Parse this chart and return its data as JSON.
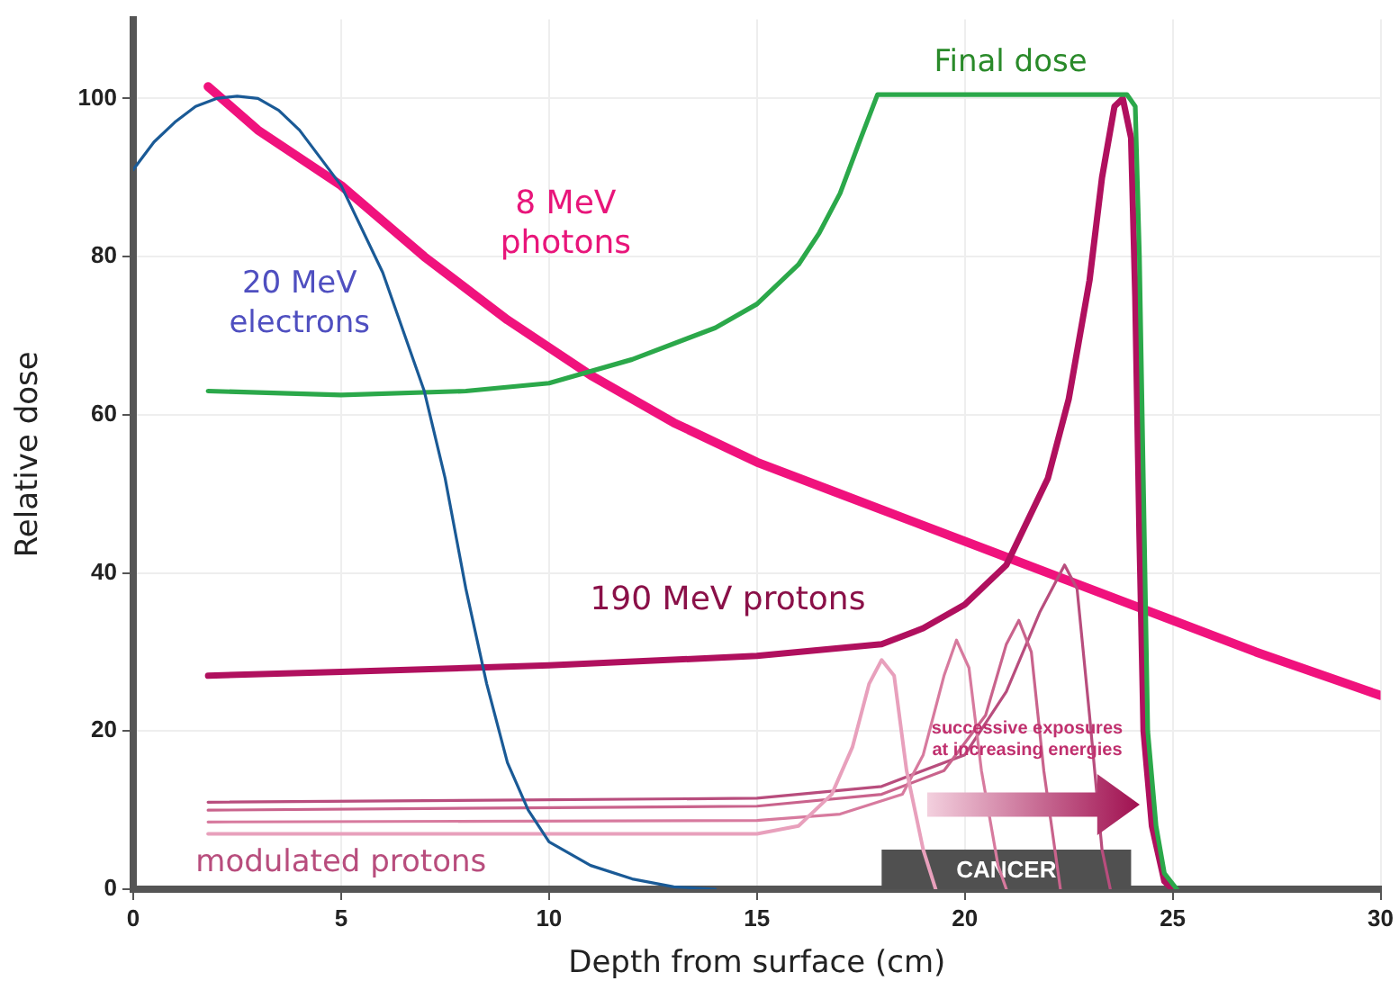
{
  "chart_data": {
    "type": "line",
    "xlabel": "Depth from surface (cm)",
    "ylabel": "Relative dose",
    "xlim": [
      0,
      30
    ],
    "xticks": [
      0,
      5,
      10,
      15,
      20,
      25,
      30
    ],
    "ylim": [
      0,
      110
    ],
    "yticks": [
      0,
      20,
      40,
      60,
      80,
      100
    ],
    "grid": true,
    "legend": false,
    "marker": "none",
    "series": [
      {
        "name": "20 MeV electrons",
        "color": "#1a5a96",
        "x": [
          0,
          0.5,
          1,
          1.5,
          2,
          2.5,
          3,
          3.5,
          4,
          5,
          6,
          7,
          7.5,
          8,
          8.5,
          9,
          9.5,
          10,
          11,
          12,
          13,
          14
        ],
        "values": [
          91,
          94.5,
          97,
          99,
          100,
          100.3,
          100,
          98.5,
          96,
          89,
          78,
          63,
          52,
          38,
          26,
          16,
          10,
          6,
          3,
          1.3,
          0.3,
          0
        ]
      },
      {
        "name": "Final dose",
        "color": "#2ba84a",
        "x": [
          1.8,
          5,
          8,
          10,
          12,
          14,
          15,
          16,
          16.5,
          17,
          17.5,
          17.9,
          23.9,
          24.1,
          24.2,
          24.3,
          24.4,
          24.6,
          24.8,
          25.1
        ],
        "values": [
          63,
          62.5,
          63,
          64,
          67,
          71,
          74,
          79,
          83,
          88,
          95,
          100.5,
          100.5,
          99,
          80,
          50,
          20,
          8,
          2,
          0
        ]
      },
      {
        "color": "#e8a0bc",
        "x": [
          1.8,
          15,
          16,
          16.8,
          17.3,
          17.7,
          18,
          18.3,
          18.6,
          19,
          19.3
        ],
        "values": [
          7,
          7,
          8,
          12,
          18,
          26,
          29,
          27,
          15,
          5,
          0
        ]
      },
      {
        "color": "#d77a9e",
        "x": [
          1.8,
          15,
          17,
          18.5,
          19,
          19.5,
          19.8,
          20.1,
          20.4,
          20.8,
          21
        ],
        "values": [
          8.5,
          8.7,
          9.5,
          12,
          17,
          27,
          31.5,
          28,
          15,
          3,
          0
        ]
      },
      {
        "color": "#c9638c",
        "x": [
          1.8,
          15,
          18,
          19.5,
          20.5,
          21,
          21.3,
          21.6,
          21.9,
          22.3
        ],
        "values": [
          10,
          10.5,
          12,
          15,
          22,
          31,
          34,
          30,
          15,
          0
        ]
      },
      {
        "name": "modulated protons",
        "color": "#b84d7d",
        "x": [
          1.8,
          15,
          18,
          20,
          21,
          21.8,
          22.4,
          22.7,
          23,
          23.3,
          23.5
        ],
        "values": [
          11,
          11.5,
          13,
          17,
          25,
          35,
          41,
          38,
          22,
          5,
          0
        ]
      },
      {
        "name": "190 MeV protons",
        "color": "#b0105e",
        "x": [
          1.8,
          5,
          10,
          15,
          18,
          19,
          20,
          21,
          22,
          22.5,
          23,
          23.3,
          23.6,
          23.8,
          24,
          24.1,
          24.2,
          24.3,
          24.5,
          24.8,
          25
        ],
        "values": [
          27,
          27.5,
          28.3,
          29.5,
          31,
          33,
          36,
          41,
          52,
          62,
          77,
          90,
          99,
          100,
          95,
          75,
          45,
          20,
          8,
          1,
          0
        ]
      },
      {
        "name": "8 MeV photons",
        "color": "#f0127d",
        "x": [
          1.8,
          3,
          5,
          7,
          9,
          11,
          13,
          15,
          17,
          19,
          21,
          23,
          25,
          27,
          30
        ],
        "values": [
          101.5,
          96,
          89,
          80,
          72,
          65,
          59,
          54,
          50,
          46,
          42,
          38,
          34,
          30,
          24.5
        ]
      }
    ],
    "bands": [
      {
        "axis": "x",
        "from": 18,
        "to": 24,
        "label": "CANCER",
        "color": "#505050"
      }
    ],
    "annotations": [
      "successive exposures at increasing energies"
    ]
  }
}
